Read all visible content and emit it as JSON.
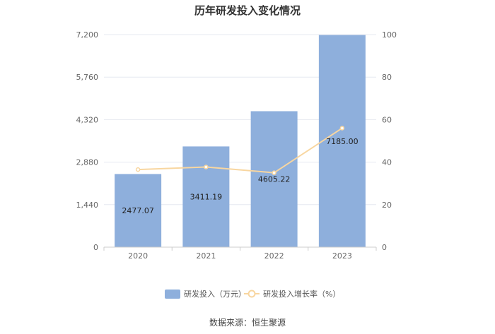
{
  "chart_data": {
    "type": "bar",
    "title": "历年研发投入变化情况",
    "categories": [
      "2020",
      "2021",
      "2022",
      "2023"
    ],
    "series": [
      {
        "name": "研发投入（万元）",
        "type": "bar",
        "axis": "left",
        "values": [
          2477.07,
          3411.19,
          4605.22,
          7185.0
        ],
        "labels": [
          "2477.07",
          "3411.19",
          "4605.22",
          "7185.00"
        ]
      },
      {
        "name": "研发投入增长率（%）",
        "type": "line",
        "axis": "right",
        "values": [
          36.5,
          37.7,
          35.0,
          56.0
        ]
      }
    ],
    "y_left": {
      "min": 0,
      "max": 7200,
      "ticks": [
        0,
        1440,
        2880,
        4320,
        5760,
        7200
      ],
      "tick_labels": [
        "0",
        "1,440",
        "2,880",
        "4,320",
        "5,760",
        "7,200"
      ]
    },
    "y_right": {
      "min": 0,
      "max": 100,
      "ticks": [
        0,
        20,
        40,
        60,
        80,
        100
      ],
      "tick_labels": [
        "0",
        "20",
        "40",
        "60",
        "80",
        "100"
      ]
    },
    "grid": true,
    "legend_position": "bottom"
  },
  "colors": {
    "bar": "#8eafdc",
    "line": "#f8d6a0",
    "grid": "#e6e9f0",
    "axis": "#cccccc"
  },
  "source": "数据来源：恒生聚源"
}
